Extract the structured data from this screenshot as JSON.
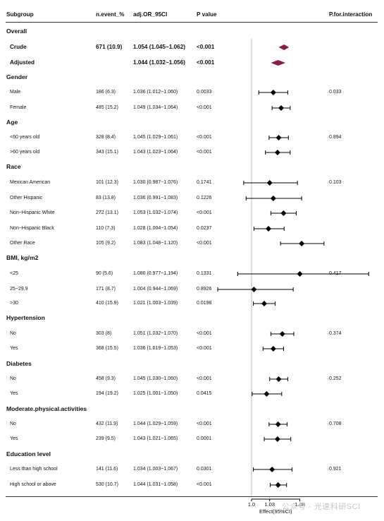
{
  "table": {
    "headers": [
      "Subgroup",
      "n.event_%",
      "adj.OR_95CI",
      "P value",
      "P.for.interaction"
    ],
    "rows": [
      {
        "type": "section",
        "label": "Overall"
      },
      {
        "type": "row",
        "label": "Crude",
        "bold": true,
        "n": "671 (10.9)",
        "ci": "1.054 (1.045~1.062)",
        "p": "<0.001",
        "pint": "",
        "est": 1.054,
        "lo": 1.045,
        "hi": 1.062
      },
      {
        "type": "row",
        "label": "Adjusted",
        "bold": true,
        "n": "",
        "ci": "1.044 (1.032~1.056)",
        "p": "<0.001",
        "pint": "",
        "est": 1.044,
        "lo": 1.032,
        "hi": 1.056
      },
      {
        "type": "section",
        "label": "Gender"
      },
      {
        "type": "row",
        "label": "Male",
        "n": "186 (6.3)",
        "ci": "1.036 (1.012~1.060)",
        "p": "0.0033",
        "pint": "0.033",
        "est": 1.036,
        "lo": 1.012,
        "hi": 1.06
      },
      {
        "type": "row",
        "label": "Female",
        "n": "485 (15.2)",
        "ci": "1.049 (1.034~1.064)",
        "p": "<0.001",
        "pint": "",
        "est": 1.049,
        "lo": 1.034,
        "hi": 1.064
      },
      {
        "type": "section",
        "label": "Age"
      },
      {
        "type": "row",
        "label": "<60 years old",
        "n": "328 (8.4)",
        "ci": "1.045 (1.029~1.061)",
        "p": "<0.001",
        "pint": "0.894",
        "est": 1.045,
        "lo": 1.029,
        "hi": 1.061
      },
      {
        "type": "row",
        "label": ">60 years old",
        "n": "343 (15.1)",
        "ci": "1.043 (1.023~1.064)",
        "p": "<0.001",
        "pint": "",
        "est": 1.043,
        "lo": 1.023,
        "hi": 1.064
      },
      {
        "type": "section",
        "label": "Race"
      },
      {
        "type": "row",
        "label": "Mexican American",
        "n": "101 (12.3)",
        "ci": "1.030 (0.987~1.076)",
        "p": "0.1741",
        "pint": "0.103",
        "est": 1.03,
        "lo": 0.987,
        "hi": 1.076
      },
      {
        "type": "row",
        "label": "Other Hispanic",
        "n": "83 (13.8)",
        "ci": "1.036 (0.991~1.083)",
        "p": "0.1226",
        "pint": "",
        "est": 1.036,
        "lo": 0.991,
        "hi": 1.083
      },
      {
        "type": "row",
        "label": "Non−Hispanic White",
        "n": "272 (13.1)",
        "ci": "1.053 (1.032~1.074)",
        "p": "<0.001",
        "pint": "",
        "est": 1.053,
        "lo": 1.032,
        "hi": 1.074
      },
      {
        "type": "row",
        "label": "Non−Hispanic Black",
        "n": "110 (7.3)",
        "ci": "1.028 (1.004~1.054)",
        "p": "0.0237",
        "pint": "",
        "est": 1.028,
        "lo": 1.004,
        "hi": 1.054
      },
      {
        "type": "row",
        "label": "Other Race",
        "n": "105 (9.2)",
        "ci": "1.083 (1.048~1.120)",
        "p": "<0.001",
        "pint": "",
        "est": 1.083,
        "lo": 1.048,
        "hi": 1.12
      },
      {
        "type": "section",
        "label": "BMI, kg/m2"
      },
      {
        "type": "row",
        "label": "<25",
        "n": "90 (5.6)",
        "ci": "1.080 (0.977~1.194)",
        "p": "0.1331",
        "pint": "0.417",
        "est": 1.08,
        "lo": 0.977,
        "hi": 1.194
      },
      {
        "type": "row",
        "label": "25~29.9",
        "n": "171 (8.7)",
        "ci": "1.004 (0.944~1.069)",
        "p": "0.8926",
        "pint": "",
        "est": 1.004,
        "lo": 0.944,
        "hi": 1.069
      },
      {
        "type": "row",
        "label": ">30",
        "n": "410 (15.9)",
        "ci": "1.021 (1.003~1.039)",
        "p": "0.0198",
        "pint": "",
        "est": 1.021,
        "lo": 1.003,
        "hi": 1.039
      },
      {
        "type": "section",
        "label": "Hypertension"
      },
      {
        "type": "row",
        "label": "No",
        "n": "303 (8)",
        "ci": "1.051 (1.032~1.070)",
        "p": "<0.001",
        "pint": "0.374",
        "est": 1.051,
        "lo": 1.032,
        "hi": 1.07
      },
      {
        "type": "row",
        "label": "Yes",
        "n": "368 (15.5)",
        "ci": "1.036 (1.019~1.053)",
        "p": "<0.001",
        "pint": "",
        "est": 1.036,
        "lo": 1.019,
        "hi": 1.053
      },
      {
        "type": "section",
        "label": "Diabetes"
      },
      {
        "type": "row",
        "label": "No",
        "n": "458 (9.3)",
        "ci": "1.045 (1.030~1.060)",
        "p": "<0.001",
        "pint": "0.252",
        "est": 1.045,
        "lo": 1.03,
        "hi": 1.06
      },
      {
        "type": "row",
        "label": "Yes",
        "n": "194 (19.2)",
        "ci": "1.025 (1.001~1.050)",
        "p": "0.0415",
        "pint": "",
        "est": 1.025,
        "lo": 1.001,
        "hi": 1.05
      },
      {
        "type": "section",
        "label": "Moderate.physical.activities"
      },
      {
        "type": "row",
        "label": "No",
        "n": "432 (11.9)",
        "ci": "1.044 (1.029~1.059)",
        "p": "<0.001",
        "pint": "0.708",
        "est": 1.044,
        "lo": 1.029,
        "hi": 1.059
      },
      {
        "type": "row",
        "label": "Yes",
        "n": "239 (9.5)",
        "ci": "1.043 (1.021~1.065)",
        "p": "0.0001",
        "pint": "",
        "est": 1.043,
        "lo": 1.021,
        "hi": 1.065
      },
      {
        "type": "section",
        "label": "Education level"
      },
      {
        "type": "row",
        "label": "Less than high school",
        "n": "141 (11.6)",
        "ci": "1.034 (1.003~1.067)",
        "p": "0.0301",
        "pint": "0.921",
        "est": 1.034,
        "lo": 1.003,
        "hi": 1.067
      },
      {
        "type": "row",
        "label": "High school or above",
        "n": "530 (10.7)",
        "ci": "1.044 (1.031~1.058)",
        "p": "<0.001",
        "pint": "",
        "est": 1.044,
        "lo": 1.031,
        "hi": 1.058
      }
    ]
  },
  "chart_data": {
    "type": "forest",
    "xlabel": "Effect(95%CI)",
    "tick_labels": [
      "1.0",
      "1.03",
      "1.08"
    ],
    "ticks": [
      1.0,
      1.03,
      1.08
    ],
    "reference_line": 1.0,
    "colors": {
      "summary_diamond": "#8b1a4a",
      "point": "#000000"
    }
  },
  "watermark": "公众号 · 光速科研SCI"
}
